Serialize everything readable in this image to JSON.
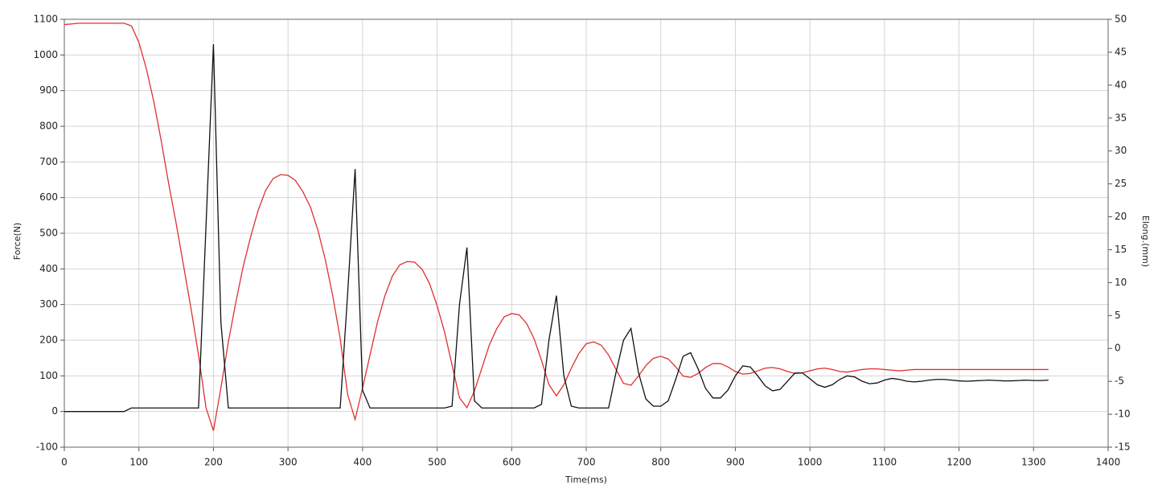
{
  "chart_data": {
    "type": "line",
    "x_label": "Time(ms)",
    "y_label": "Force(N)",
    "y2_label": "Elong.(mm)",
    "xlim": [
      0,
      1400
    ],
    "xticks": [
      0,
      100,
      200,
      300,
      400,
      500,
      600,
      700,
      800,
      900,
      1000,
      1100,
      1200,
      1300,
      1400
    ],
    "ylim": [
      -100,
      1100
    ],
    "yticks": [
      -100,
      0,
      100,
      200,
      300,
      400,
      500,
      600,
      700,
      800,
      900,
      1000,
      1100
    ],
    "y2lim": [
      -15,
      50
    ],
    "y2ticks": [
      -15,
      -10,
      -5,
      0,
      5,
      10,
      15,
      20,
      25,
      30,
      35,
      40,
      45,
      50
    ],
    "grid": true,
    "x": [
      0,
      10,
      20,
      30,
      40,
      50,
      60,
      70,
      80,
      90,
      100,
      110,
      120,
      130,
      140,
      150,
      160,
      170,
      180,
      190,
      200,
      210,
      220,
      230,
      240,
      250,
      260,
      270,
      280,
      290,
      300,
      310,
      320,
      330,
      340,
      350,
      360,
      370,
      380,
      390,
      400,
      410,
      420,
      430,
      440,
      450,
      460,
      470,
      480,
      490,
      500,
      510,
      520,
      530,
      540,
      550,
      560,
      570,
      580,
      590,
      600,
      610,
      620,
      630,
      640,
      650,
      660,
      670,
      680,
      690,
      700,
      710,
      720,
      730,
      740,
      750,
      760,
      770,
      780,
      790,
      800,
      810,
      820,
      830,
      840,
      850,
      860,
      870,
      880,
      890,
      900,
      910,
      920,
      930,
      940,
      950,
      960,
      970,
      980,
      990,
      1000,
      1010,
      1020,
      1030,
      1040,
      1050,
      1060,
      1070,
      1080,
      1090,
      1100,
      1110,
      1120,
      1130,
      1140,
      1150,
      1160,
      1170,
      1180,
      1190,
      1200,
      1210,
      1220,
      1230,
      1240,
      1250,
      1260,
      1270,
      1280,
      1290,
      1300,
      1310,
      1320
    ],
    "series": [
      {
        "color": "#e03030",
        "axis": "y2",
        "values": [
          49.2,
          49.3,
          49.4,
          49.4,
          49.4,
          49.4,
          49.4,
          49.4,
          49.4,
          49.0,
          46.5,
          42.5,
          37.5,
          31.5,
          25,
          19,
          12.5,
          6,
          -1,
          -9,
          -12.5,
          -6,
          1,
          7,
          12.5,
          17,
          21,
          24,
          25.8,
          26.4,
          26.3,
          25.5,
          23.8,
          21.5,
          18,
          13.5,
          8,
          1.5,
          -7,
          -10.8,
          -6,
          -1,
          4,
          8,
          11,
          12.7,
          13.2,
          13.1,
          12,
          9.8,
          6.5,
          2.5,
          -2.5,
          -7.5,
          -9,
          -6.5,
          -3,
          0.5,
          3,
          4.8,
          5.3,
          5.1,
          3.8,
          1.5,
          -1.8,
          -5.5,
          -7.2,
          -5.5,
          -3,
          -0.8,
          0.7,
          1,
          0.5,
          -1,
          -3.2,
          -5.3,
          -5.6,
          -4.2,
          -2.6,
          -1.5,
          -1.2,
          -1.6,
          -2.8,
          -4.2,
          -4.4,
          -3.8,
          -2.9,
          -2.3,
          -2.3,
          -2.8,
          -3.5,
          -3.9,
          -3.8,
          -3.4,
          -3.0,
          -2.9,
          -3.1,
          -3.5,
          -3.8,
          -3.7,
          -3.4,
          -3.1,
          -3.0,
          -3.2,
          -3.5,
          -3.6,
          -3.4,
          -3.2,
          -3.1,
          -3.1,
          -3.2,
          -3.3,
          -3.4,
          -3.3,
          -3.2,
          -3.2,
          -3.2,
          -3.2,
          -3.2,
          -3.2,
          -3.2,
          -3.2,
          -3.2,
          -3.2,
          -3.2,
          -3.2,
          -3.2,
          -3.2,
          -3.2,
          -3.2,
          -3.2,
          -3.2,
          -3.2
        ]
      },
      {
        "color": "#111111",
        "axis": "y",
        "values": [
          0,
          0,
          0,
          0,
          0,
          0,
          0,
          0,
          0,
          10,
          10,
          10,
          10,
          10,
          10,
          10,
          10,
          10,
          10,
          520,
          1030,
          250,
          10,
          10,
          10,
          10,
          10,
          10,
          10,
          10,
          10,
          10,
          10,
          10,
          10,
          10,
          10,
          10,
          330,
          680,
          60,
          10,
          10,
          10,
          10,
          10,
          10,
          10,
          10,
          10,
          10,
          10,
          15,
          300,
          460,
          30,
          10,
          10,
          10,
          10,
          10,
          10,
          10,
          10,
          20,
          200,
          325,
          100,
          15,
          10,
          10,
          10,
          10,
          10,
          110,
          200,
          233,
          110,
          35,
          15,
          15,
          30,
          90,
          155,
          165,
          120,
          65,
          38,
          38,
          60,
          100,
          128,
          125,
          100,
          72,
          58,
          62,
          85,
          108,
          108,
          92,
          75,
          68,
          75,
          90,
          100,
          97,
          85,
          78,
          80,
          88,
          93,
          90,
          85,
          83,
          85,
          88,
          90,
          90,
          88,
          86,
          85,
          86,
          87,
          88,
          87,
          86,
          86,
          87,
          88,
          87,
          87,
          88
        ]
      }
    ]
  }
}
